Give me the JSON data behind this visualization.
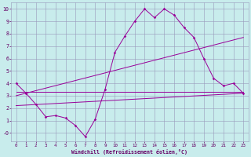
{
  "background_color": "#c8ecec",
  "grid_color": "#9999bb",
  "line_color": "#990099",
  "xlabel": "Windchill (Refroidissement éolien,°C)",
  "xlabel_color": "#660066",
  "tick_color": "#660066",
  "xlim": [
    -0.5,
    23.5
  ],
  "ylim": [
    -0.7,
    10.5
  ],
  "xticks": [
    0,
    1,
    2,
    3,
    4,
    5,
    6,
    7,
    8,
    9,
    10,
    11,
    12,
    13,
    14,
    15,
    16,
    17,
    18,
    19,
    20,
    21,
    22,
    23
  ],
  "yticks": [
    0,
    1,
    2,
    3,
    4,
    5,
    6,
    7,
    8,
    9,
    10
  ],
  "ytick_labels": [
    "-0",
    "1",
    "2",
    "3",
    "4",
    "5",
    "6",
    "7",
    "8",
    "9",
    "10"
  ],
  "line1_x": [
    0,
    1,
    2,
    3,
    4,
    5,
    6,
    7,
    8,
    9,
    10,
    11,
    12,
    13,
    14,
    15,
    16,
    17,
    18,
    19,
    20,
    21,
    22,
    23
  ],
  "line1_y": [
    4.0,
    3.2,
    2.3,
    1.3,
    1.4,
    1.2,
    0.6,
    -0.3,
    1.1,
    3.5,
    6.5,
    7.8,
    9.0,
    10.0,
    9.3,
    10.0,
    9.5,
    8.5,
    7.7,
    6.0,
    4.4,
    3.8,
    4.0,
    3.2
  ],
  "line2_x": [
    0,
    23
  ],
  "line2_y": [
    3.3,
    3.3
  ],
  "line3_x": [
    0,
    23
  ],
  "line3_y": [
    3.0,
    7.7
  ],
  "line4_x": [
    0,
    23
  ],
  "line4_y": [
    2.2,
    3.2
  ],
  "figwidth": 3.2,
  "figheight": 2.0,
  "dpi": 100
}
